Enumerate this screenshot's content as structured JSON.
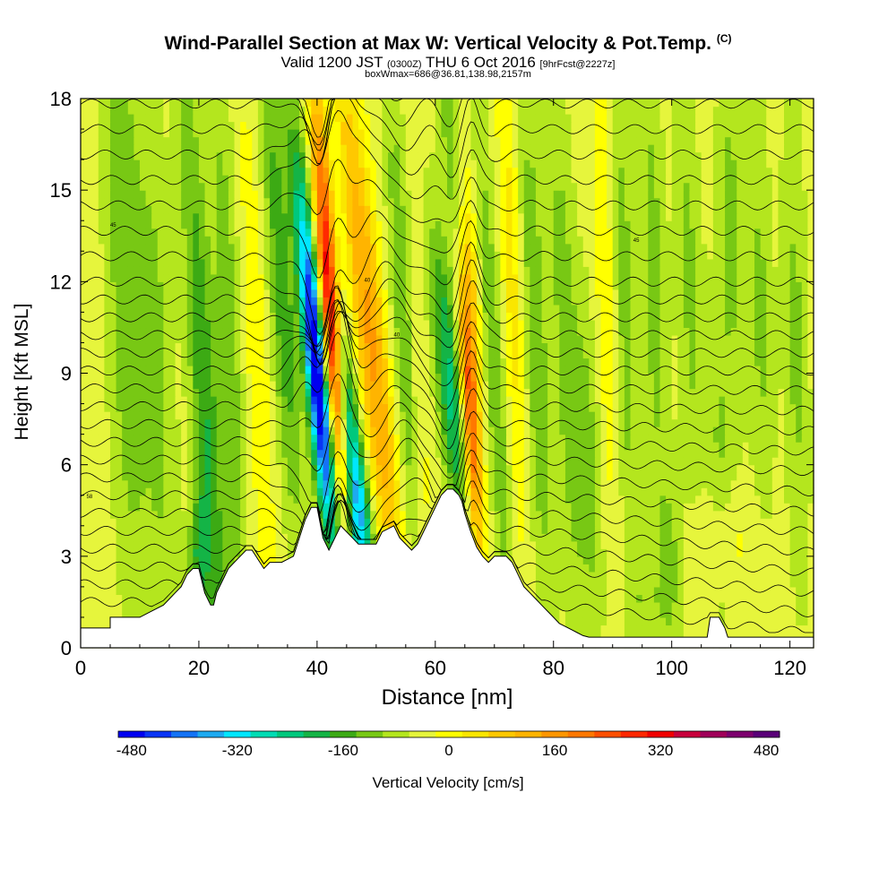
{
  "header": {
    "title": "Wind-Parallel Section at Max W: Vertical Velocity & Pot.Temp.",
    "copyright": "(C)",
    "valid_prefix": "Valid 1200 JST",
    "valid_utc": "(0300Z)",
    "valid_date": "THU 6 Oct 2016",
    "forecast_info": "[9hrFcst@2227z]",
    "box_info": "boxWmax=686@36.81,138.98,2157m"
  },
  "chart_data": {
    "type": "heatmap",
    "xlabel": "Distance [nm]",
    "ylabel": "Height [Kft MSL]",
    "xlim": [
      0,
      124
    ],
    "ylim": [
      0,
      18
    ],
    "x_ticks": [
      0,
      20,
      40,
      60,
      80,
      100,
      120
    ],
    "y_ticks": [
      0,
      3,
      6,
      9,
      12,
      15,
      18
    ],
    "colorbar": {
      "label": "Vertical Velocity [cm/s]",
      "range": [
        -480,
        480
      ],
      "tick_values": [
        -480,
        -320,
        -160,
        0,
        160,
        320,
        480
      ],
      "tick_labels": [
        "-480",
        "-320",
        "-160",
        "0",
        "160",
        "320",
        "480"
      ],
      "bins": [
        {
          "from": -480,
          "to": -440,
          "color": "#0000f0"
        },
        {
          "from": -440,
          "to": -400,
          "color": "#0a35f5"
        },
        {
          "from": -400,
          "to": -360,
          "color": "#1473f5"
        },
        {
          "from": -360,
          "to": -320,
          "color": "#1eaaf0"
        },
        {
          "from": -320,
          "to": -280,
          "color": "#00e6ff"
        },
        {
          "from": -280,
          "to": -240,
          "color": "#00dcb4"
        },
        {
          "from": -240,
          "to": -200,
          "color": "#00c87d"
        },
        {
          "from": -200,
          "to": -160,
          "color": "#14b446"
        },
        {
          "from": -160,
          "to": -120,
          "color": "#3caa14"
        },
        {
          "from": -120,
          "to": -80,
          "color": "#78c814"
        },
        {
          "from": -80,
          "to": -40,
          "color": "#b4e61e"
        },
        {
          "from": -40,
          "to": 0,
          "color": "#e6f53c"
        },
        {
          "from": 0,
          "to": 40,
          "color": "#ffff00"
        },
        {
          "from": 40,
          "to": 80,
          "color": "#fae600"
        },
        {
          "from": 80,
          "to": 120,
          "color": "#ffc800"
        },
        {
          "from": 120,
          "to": 160,
          "color": "#ffb400"
        },
        {
          "from": 160,
          "to": 200,
          "color": "#ff9600"
        },
        {
          "from": 200,
          "to": 240,
          "color": "#ff7800"
        },
        {
          "from": 240,
          "to": 280,
          "color": "#ff5000"
        },
        {
          "from": 280,
          "to": 320,
          "color": "#ff2800"
        },
        {
          "from": 320,
          "to": 360,
          "color": "#f00000"
        },
        {
          "from": 360,
          "to": 400,
          "color": "#c8003c"
        },
        {
          "from": 400,
          "to": 440,
          "color": "#a0005a"
        },
        {
          "from": 440,
          "to": 480,
          "color": "#7d006e"
        },
        {
          "from": 480,
          "to": 520,
          "color": "#5a0078"
        }
      ]
    },
    "w_background": -20,
    "w_features": [
      {
        "x": 7.5,
        "z": 12,
        "w": -90,
        "sx": 2.2,
        "sz": 8,
        "tilt": 0.15
      },
      {
        "x": 13,
        "z": 9,
        "w": -70,
        "sx": 2.0,
        "sz": 7,
        "tilt": 0.15
      },
      {
        "x": 21,
        "z": 8,
        "w": -140,
        "sx": 1.6,
        "sz": 8,
        "tilt": 0.3
      },
      {
        "x": 20,
        "z": 3,
        "w": -130,
        "sx": 1.2,
        "sz": 1.5,
        "tilt": 0
      },
      {
        "x": 25,
        "z": 10,
        "w": -90,
        "sx": 1.5,
        "sz": 7,
        "tilt": 0.2
      },
      {
        "x": 30,
        "z": 9,
        "w": 60,
        "sx": 1.2,
        "sz": 6,
        "tilt": 0.25
      },
      {
        "x": 34,
        "z": 12,
        "w": -130,
        "sx": 1.5,
        "sz": 6,
        "tilt": 0.3
      },
      {
        "x": 40.5,
        "z": 8,
        "w": -380,
        "sx": 1.3,
        "sz": 3.5,
        "tilt": 0.45
      },
      {
        "x": 38.5,
        "z": 12,
        "w": -200,
        "sx": 1.2,
        "sz": 4,
        "tilt": 0.45
      },
      {
        "x": 42.5,
        "z": 9.5,
        "w": 350,
        "sx": 1.1,
        "sz": 3.5,
        "tilt": 0.4
      },
      {
        "x": 41.5,
        "z": 14,
        "w": 200,
        "sx": 1.1,
        "sz": 4,
        "tilt": 0.4
      },
      {
        "x": 45.5,
        "z": 7,
        "w": -250,
        "sx": 1.4,
        "sz": 3,
        "tilt": 0.6
      },
      {
        "x": 47,
        "z": 4,
        "w": -170,
        "sx": 1.5,
        "sz": 1.5,
        "tilt": 0.4
      },
      {
        "x": 47,
        "z": 12,
        "w": 130,
        "sx": 1.2,
        "sz": 6,
        "tilt": 0.45
      },
      {
        "x": 50.5,
        "z": 9,
        "w": 150,
        "sx": 1.3,
        "sz": 6,
        "tilt": 0.45
      },
      {
        "x": 55,
        "z": 10,
        "w": -120,
        "sx": 1.3,
        "sz": 6,
        "tilt": 0.3
      },
      {
        "x": 57,
        "z": 7,
        "w": 70,
        "sx": 1.2,
        "sz": 4,
        "tilt": 0.3
      },
      {
        "x": 62.5,
        "z": 8.5,
        "w": -200,
        "sx": 1.5,
        "sz": 3.5,
        "tilt": 0.45
      },
      {
        "x": 63.5,
        "z": 15,
        "w": -110,
        "sx": 1.3,
        "sz": 4,
        "tilt": 0.4
      },
      {
        "x": 65.8,
        "z": 8,
        "w": 300,
        "sx": 1.0,
        "sz": 3.5,
        "tilt": 0.3
      },
      {
        "x": 66,
        "z": 12,
        "w": 130,
        "sx": 1.0,
        "sz": 3,
        "tilt": 0.3
      },
      {
        "x": 70,
        "z": 9,
        "w": -90,
        "sx": 1.3,
        "sz": 7,
        "tilt": 0.3
      },
      {
        "x": 73,
        "z": 12,
        "w": 80,
        "sx": 1.2,
        "sz": 6,
        "tilt": 0.2
      },
      {
        "x": 77,
        "z": 10,
        "w": -90,
        "sx": 1.5,
        "sz": 7,
        "tilt": 0.2
      },
      {
        "x": 82,
        "z": 10,
        "w": -80,
        "sx": 1.5,
        "sz": 7,
        "tilt": 0.2
      },
      {
        "x": 86,
        "z": 6,
        "w": -80,
        "sx": 1.5,
        "sz": 4,
        "tilt": 0.2
      },
      {
        "x": 89,
        "z": 12,
        "w": 60,
        "sx": 1.3,
        "sz": 6,
        "tilt": 0.15
      },
      {
        "x": 92,
        "z": 11,
        "w": -80,
        "sx": 1.5,
        "sz": 7,
        "tilt": 0.15
      },
      {
        "x": 97,
        "z": 12,
        "w": -80,
        "sx": 1.5,
        "sz": 6,
        "tilt": 0.15
      },
      {
        "x": 100,
        "z": 3,
        "w": -60,
        "sx": 1.5,
        "sz": 2,
        "tilt": 0
      },
      {
        "x": 103,
        "z": 12,
        "w": -70,
        "sx": 1.5,
        "sz": 6,
        "tilt": 0.15
      },
      {
        "x": 108,
        "z": 6,
        "w": -60,
        "sx": 1.5,
        "sz": 4,
        "tilt": 0.1
      },
      {
        "x": 110,
        "z": 14,
        "w": -70,
        "sx": 1.5,
        "sz": 5,
        "tilt": 0.1
      },
      {
        "x": 115,
        "z": 11,
        "w": -70,
        "sx": 1.5,
        "sz": 5,
        "tilt": 0.1
      },
      {
        "x": 121,
        "z": 10,
        "w": -70,
        "sx": 1.5,
        "sz": 6,
        "tilt": 0.1
      },
      {
        "x": 108,
        "z": 3.5,
        "w": 50,
        "sx": 4,
        "sz": 1.2,
        "tilt": 0
      },
      {
        "x": 96,
        "z": 1.5,
        "w": -40,
        "sx": 3,
        "sz": 1,
        "tilt": 0
      }
    ],
    "terrain": {
      "x": [
        0,
        5,
        5,
        10,
        12,
        14,
        15,
        16,
        17,
        18,
        19,
        20,
        20.5,
        21,
        22,
        22.5,
        23,
        24,
        25,
        26,
        27,
        28,
        29,
        31,
        32,
        34,
        36,
        37,
        38,
        39,
        40,
        41,
        42,
        43,
        44,
        45,
        46,
        47,
        48,
        50,
        51,
        53,
        54,
        56,
        57,
        58,
        59,
        60,
        61,
        62,
        63,
        64,
        64.5,
        65,
        66,
        67,
        68,
        69,
        70,
        71,
        72,
        73,
        74,
        75,
        76,
        77,
        78,
        79,
        80,
        81,
        82,
        83,
        84,
        85,
        86,
        87,
        88,
        90,
        95,
        100,
        104,
        106,
        106.5,
        108,
        109,
        109.5,
        112,
        120,
        124
      ],
      "z": [
        0.65,
        0.65,
        1.0,
        1.0,
        1.2,
        1.4,
        1.6,
        1.8,
        2.0,
        2.4,
        2.6,
        2.6,
        2.2,
        1.8,
        1.4,
        1.4,
        1.8,
        2.2,
        2.6,
        2.8,
        3.0,
        3.2,
        3.2,
        2.6,
        2.8,
        2.8,
        3.0,
        3.6,
        4.2,
        4.6,
        4.6,
        3.6,
        3.2,
        3.6,
        4.0,
        3.8,
        3.6,
        3.4,
        3.4,
        3.4,
        3.8,
        4.0,
        3.6,
        3.2,
        3.4,
        3.8,
        4.2,
        4.6,
        5.0,
        5.2,
        5.2,
        5.0,
        4.8,
        4.4,
        3.8,
        3.3,
        3.0,
        2.8,
        3.0,
        3.0,
        3.0,
        2.8,
        2.4,
        2.0,
        1.8,
        1.6,
        1.4,
        1.2,
        1.0,
        0.8,
        0.7,
        0.6,
        0.5,
        0.4,
        0.35,
        0.35,
        0.35,
        0.35,
        0.35,
        0.35,
        0.35,
        0.35,
        1.0,
        1.0,
        0.65,
        0.35,
        0.35,
        0.35,
        0.35
      ]
    },
    "theta_contours": {
      "count": 30,
      "label_ticks_shown": true,
      "labels": [
        {
          "text": "45",
          "x": 5.5,
          "z": 13.8
        },
        {
          "text": "58",
          "x": 1.5,
          "z": 4.9
        },
        {
          "text": "40",
          "x": 48.5,
          "z": 12.0
        },
        {
          "text": "40",
          "x": 53.5,
          "z": 10.2
        },
        {
          "text": "45",
          "x": 94.0,
          "z": 13.3
        }
      ]
    }
  }
}
